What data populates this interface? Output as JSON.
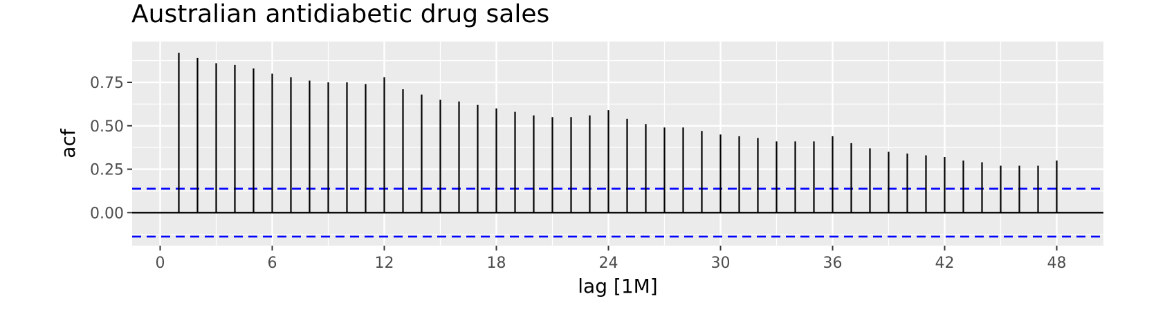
{
  "chart_data": {
    "type": "bar",
    "title": "Australian antidiabetic drug sales",
    "xlabel": "lag [1M]",
    "ylabel": "acf",
    "xlim": [
      -1.5,
      50.5
    ],
    "ylim": [
      -0.19,
      0.985
    ],
    "x_ticks": [
      0,
      6,
      12,
      18,
      24,
      30,
      36,
      42,
      48
    ],
    "y_ticks": [
      0.0,
      0.25,
      0.5,
      0.75
    ],
    "y_tick_labels": [
      "0.00",
      "0.25",
      "0.50",
      "0.75"
    ],
    "grid": true,
    "lags": [
      1,
      2,
      3,
      4,
      5,
      6,
      7,
      8,
      9,
      10,
      11,
      12,
      13,
      14,
      15,
      16,
      17,
      18,
      19,
      20,
      21,
      22,
      23,
      24,
      25,
      26,
      27,
      28,
      29,
      30,
      31,
      32,
      33,
      34,
      35,
      36,
      37,
      38,
      39,
      40,
      41,
      42,
      43,
      44,
      45,
      46,
      47,
      48
    ],
    "acf": [
      0.92,
      0.89,
      0.86,
      0.85,
      0.83,
      0.8,
      0.78,
      0.76,
      0.75,
      0.75,
      0.74,
      0.78,
      0.71,
      0.68,
      0.65,
      0.64,
      0.62,
      0.6,
      0.58,
      0.56,
      0.55,
      0.55,
      0.56,
      0.59,
      0.54,
      0.51,
      0.49,
      0.49,
      0.47,
      0.45,
      0.44,
      0.43,
      0.41,
      0.41,
      0.41,
      0.44,
      0.4,
      0.37,
      0.35,
      0.34,
      0.33,
      0.32,
      0.3,
      0.29,
      0.27,
      0.27,
      0.27,
      0.3
    ],
    "confidence_bound": 0.138,
    "colors": {
      "panel_background": "#ebebeb",
      "grid": "#ffffff",
      "bars": "#000000",
      "confidence_lines": "#0000ff"
    }
  }
}
